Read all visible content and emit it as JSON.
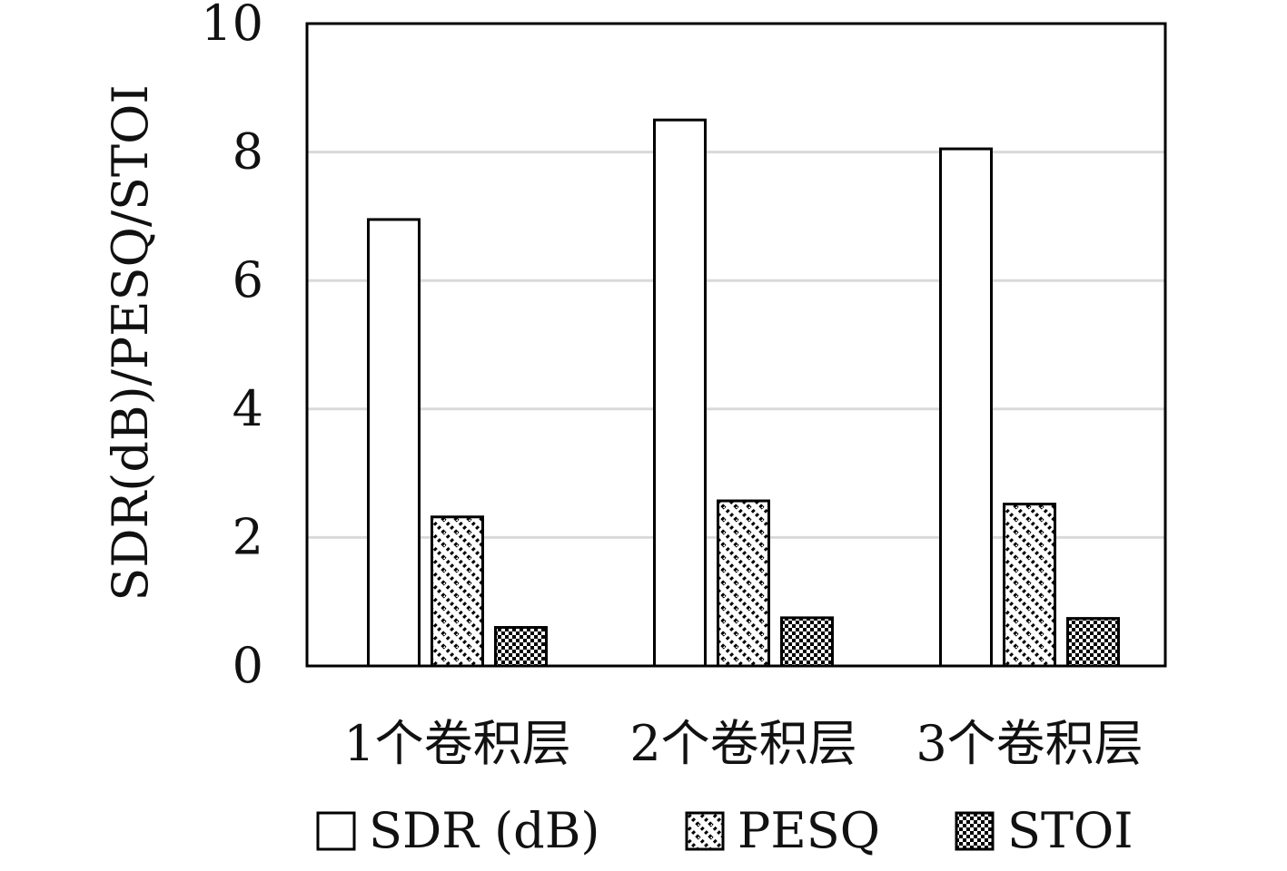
{
  "chart_data": {
    "type": "bar",
    "categories": [
      "1个卷积层",
      "2个卷积层",
      "3个卷积层"
    ],
    "series": [
      {
        "name": "SDR (dB)",
        "values": [
          6.95,
          8.5,
          8.05
        ],
        "pattern": "solid-white"
      },
      {
        "name": "PESQ",
        "values": [
          2.32,
          2.57,
          2.52
        ],
        "pattern": "diagonal-hatch"
      },
      {
        "name": "STOI",
        "values": [
          0.6,
          0.75,
          0.74
        ],
        "pattern": "checker"
      }
    ],
    "title": "",
    "xlabel": "",
    "ylabel": "SDR(dB)/PESQ/STOI",
    "ylim": [
      0,
      10
    ],
    "yticks": [
      0,
      2,
      4,
      6,
      8,
      10
    ],
    "grid": "horizontal",
    "legend_position": "bottom"
  },
  "colors": {
    "gridline": "#d9d9d9",
    "bar_stroke": "#000000",
    "bar_fill": "#ffffff",
    "text": "#111111"
  }
}
